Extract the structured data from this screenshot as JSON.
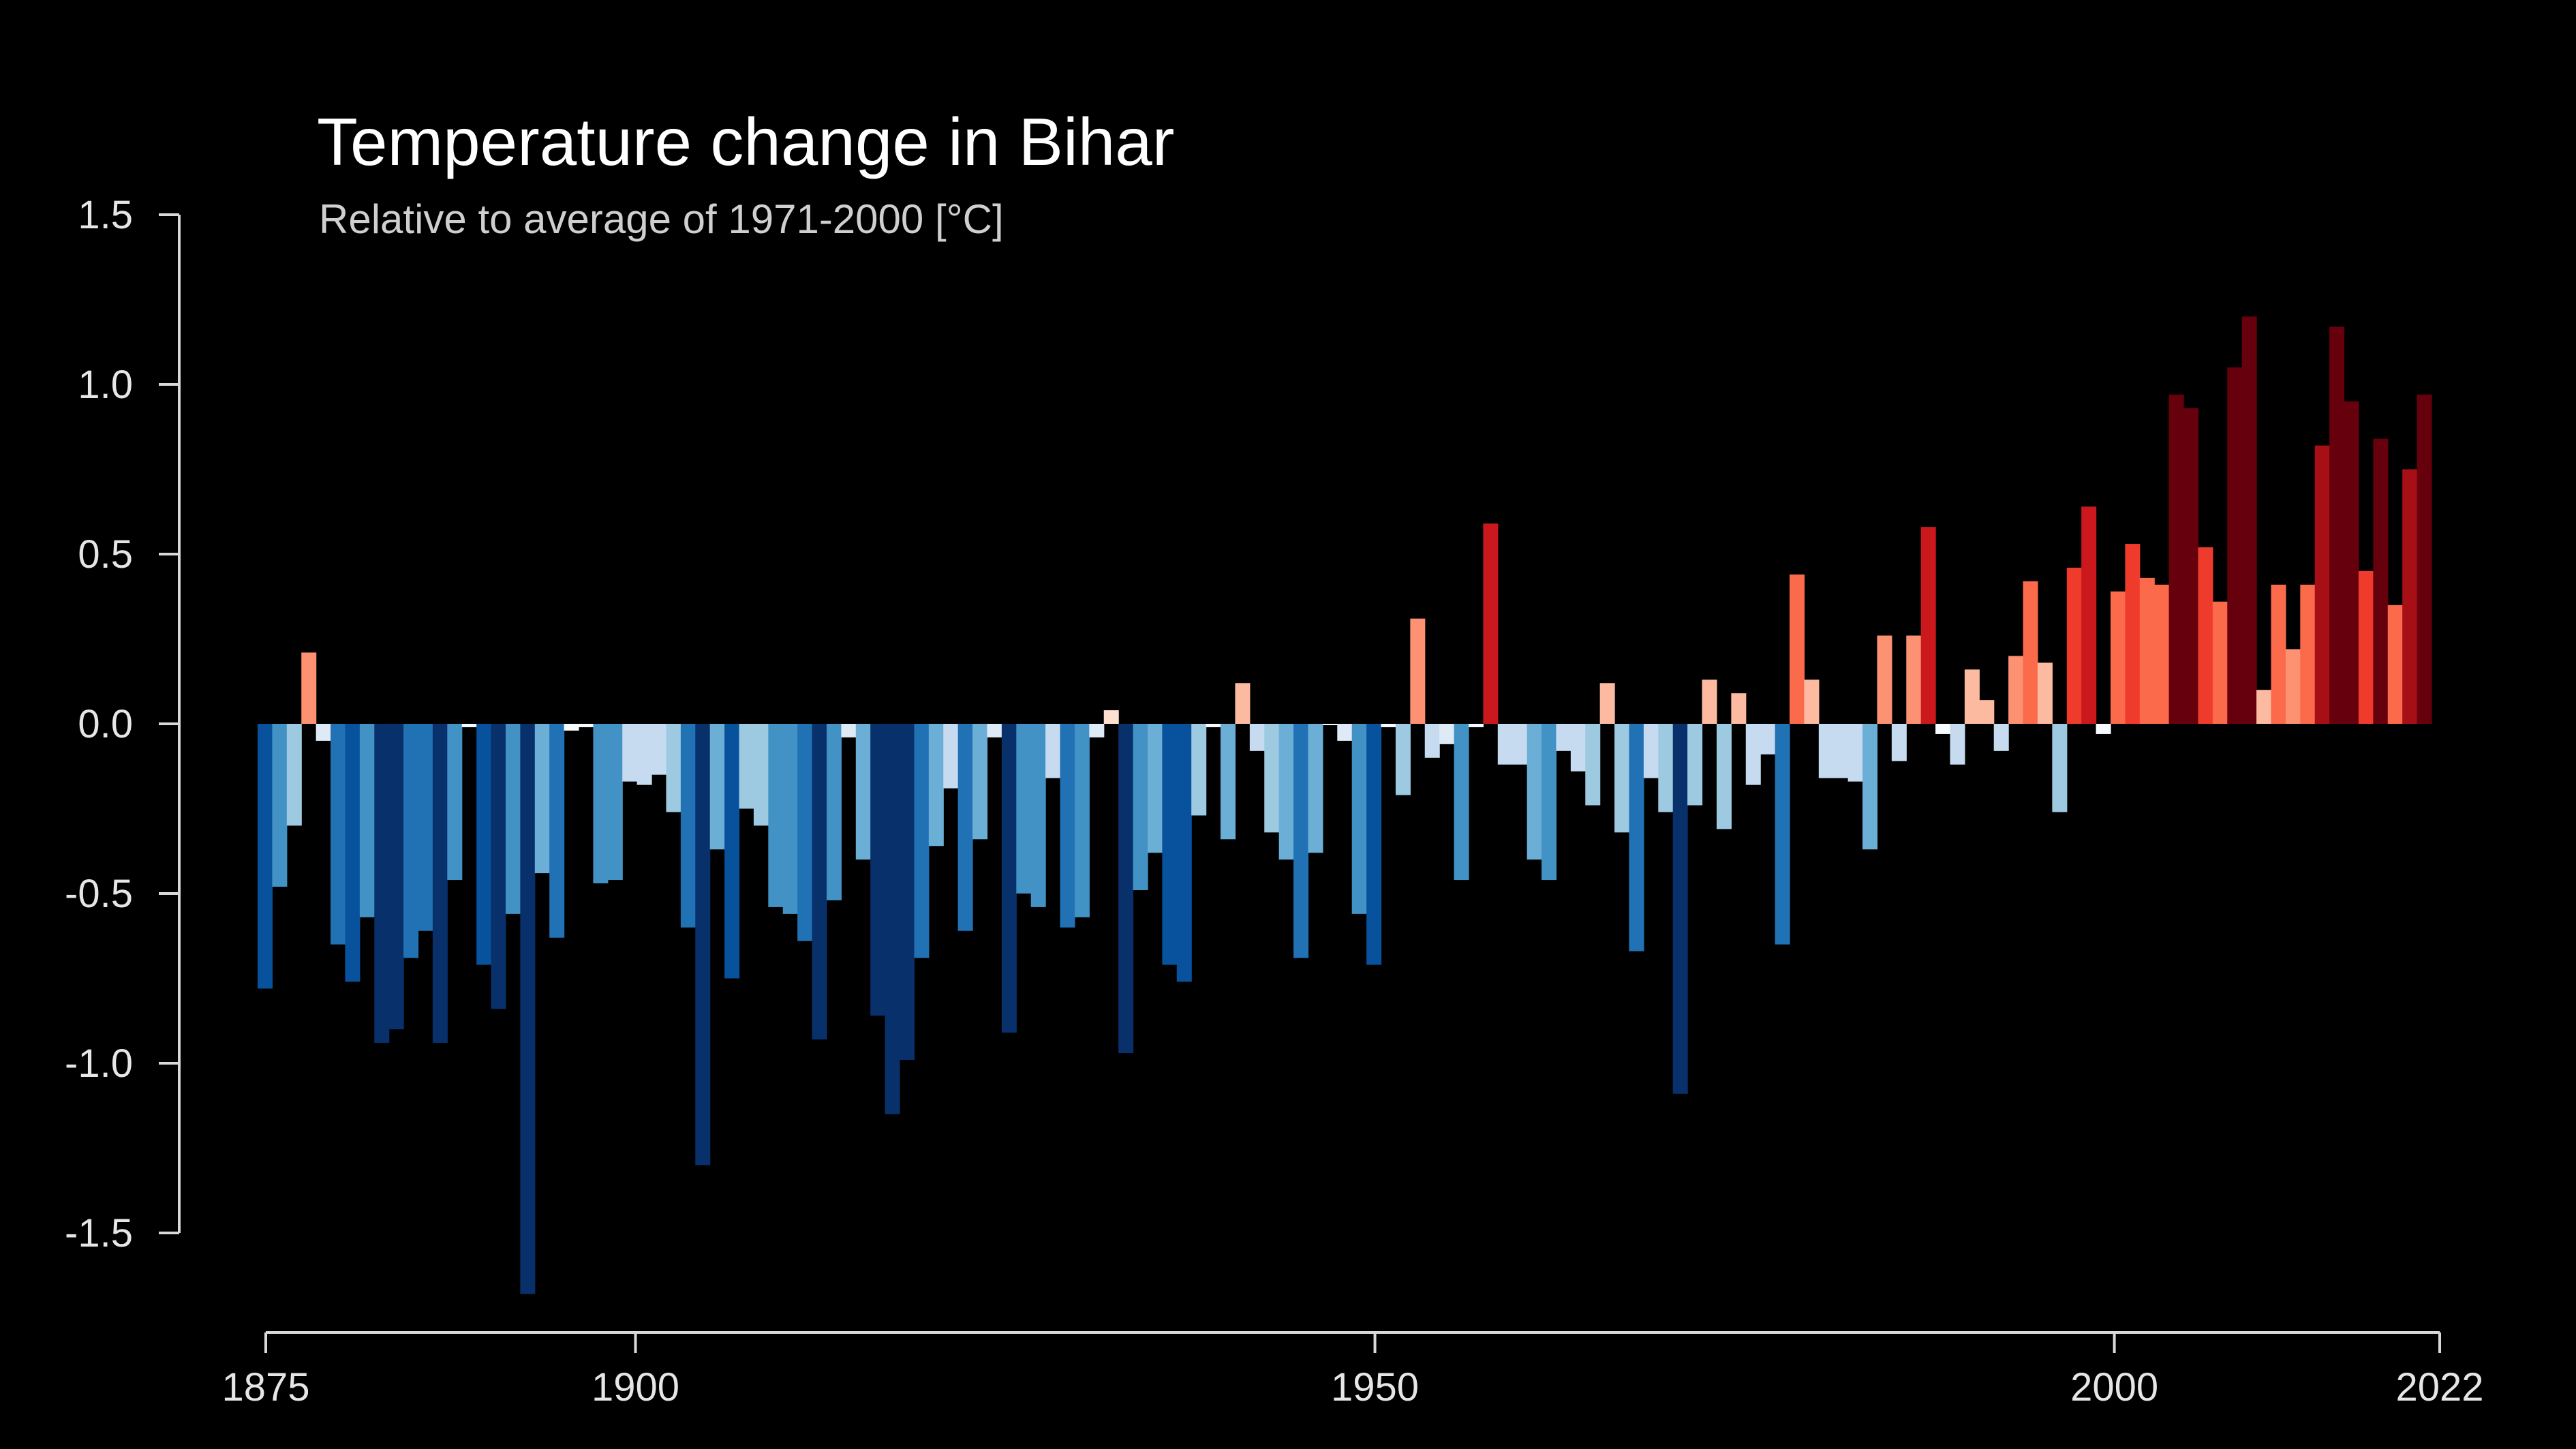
{
  "chart_data": {
    "type": "bar",
    "title": "Temperature change in Bihar",
    "subtitle": "Relative to average of 1971-2000  [°C]",
    "xlabel": "",
    "ylabel": "",
    "x_start": 1875,
    "x_end": 2022,
    "xlim": [
      1875,
      2022
    ],
    "ylim": [
      -1.5,
      1.5
    ],
    "yticks": [
      "1.5",
      "1.0",
      "0.5",
      "0.0",
      "-0.5",
      "-1.0",
      "-1.5"
    ],
    "xticks": [
      "1875",
      "1900",
      "1950",
      "2000",
      "2022"
    ],
    "grid": false,
    "color_scale": {
      "cold": [
        "#08306b",
        "#08519c",
        "#2171b5",
        "#4292c6",
        "#6baed6",
        "#9ecae1",
        "#c6dbef",
        "#deebf7"
      ],
      "neutral": "#f7fbff",
      "warm": [
        "#fee0d2",
        "#fcbba1",
        "#fc9272",
        "#fb6a4a",
        "#ef3b2c",
        "#cb181d",
        "#a50f15",
        "#67000d"
      ]
    },
    "values": [
      -0.78,
      -0.48,
      -0.3,
      0.21,
      -0.05,
      -0.65,
      -0.76,
      -0.57,
      -0.94,
      -0.9,
      -0.69,
      -0.61,
      -0.94,
      -0.46,
      -0.01,
      -0.71,
      -0.84,
      -0.56,
      -1.68,
      -0.44,
      -0.63,
      -0.02,
      -0.01,
      -0.47,
      -0.46,
      -0.17,
      -0.18,
      -0.15,
      -0.26,
      -0.6,
      -1.3,
      -0.37,
      -0.75,
      -0.25,
      -0.3,
      -0.54,
      -0.56,
      -0.64,
      -0.93,
      -0.52,
      -0.04,
      -0.4,
      -0.86,
      -1.15,
      -0.99,
      -0.69,
      -0.36,
      -0.19,
      -0.61,
      -0.34,
      -0.04,
      -0.91,
      -0.5,
      -0.54,
      -0.16,
      -0.6,
      -0.57,
      -0.04,
      0.04,
      -0.97,
      -0.49,
      -0.38,
      -0.71,
      -0.76,
      -0.27,
      -0.01,
      -0.34,
      0.12,
      -0.08,
      -0.32,
      -0.4,
      -0.69,
      -0.38,
      0.0,
      -0.05,
      -0.56,
      -0.71,
      -0.01,
      -0.21,
      0.31,
      -0.1,
      -0.06,
      -0.46,
      -0.01,
      0.59,
      -0.12,
      -0.12,
      -0.4,
      -0.46,
      -0.08,
      -0.14,
      -0.24,
      0.12,
      -0.32,
      -0.67,
      -0.16,
      -0.26,
      -1.09,
      -0.24,
      0.13,
      -0.31,
      0.09,
      -0.18,
      -0.09,
      -0.65,
      0.44,
      0.13,
      -0.16,
      -0.16,
      -0.17,
      -0.37,
      0.26,
      -0.11,
      0.26,
      0.58,
      -0.03,
      -0.12,
      0.16,
      0.07,
      -0.08,
      0.2,
      0.42,
      0.18,
      -0.26,
      0.46,
      0.64,
      -0.03,
      0.39,
      0.53,
      0.43,
      0.41,
      0.97,
      0.93,
      0.52,
      0.36,
      1.05,
      1.2,
      0.1,
      0.41,
      0.22,
      0.41,
      0.82,
      1.17,
      0.95,
      0.45,
      0.84,
      0.35,
      0.75,
      0.97
    ]
  }
}
